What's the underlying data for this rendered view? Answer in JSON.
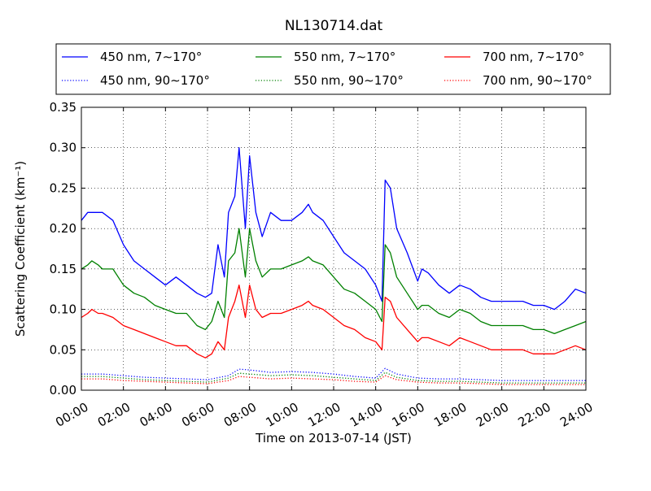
{
  "chart_data": {
    "type": "line",
    "title": "NL130714.dat",
    "xlabel": "Time on 2013-07-14 (JST)",
    "ylabel": "Scattering Coefficient (km⁻¹)",
    "x_range_hours": [
      0,
      24
    ],
    "ylim": [
      0,
      0.35
    ],
    "xticks": [
      "00:00",
      "02:00",
      "04:00",
      "06:00",
      "08:00",
      "10:00",
      "12:00",
      "14:00",
      "16:00",
      "18:00",
      "20:00",
      "22:00",
      "24:00"
    ],
    "yticks": [
      "0.00",
      "0.05",
      "0.10",
      "0.15",
      "0.20",
      "0.25",
      "0.30",
      "0.35"
    ],
    "grid": true,
    "legend_placement": "top, above plot, 3 columns",
    "series": [
      {
        "name": "450 nm, 7∼170°",
        "color": "#0000ff",
        "style": "solid",
        "points": [
          [
            0.0,
            0.21
          ],
          [
            0.3,
            0.22
          ],
          [
            0.5,
            0.22
          ],
          [
            0.8,
            0.22
          ],
          [
            1.0,
            0.22
          ],
          [
            1.5,
            0.21
          ],
          [
            2.0,
            0.18
          ],
          [
            2.5,
            0.16
          ],
          [
            3.0,
            0.15
          ],
          [
            3.5,
            0.14
          ],
          [
            4.0,
            0.13
          ],
          [
            4.5,
            0.14
          ],
          [
            5.0,
            0.13
          ],
          [
            5.5,
            0.12
          ],
          [
            5.9,
            0.115
          ],
          [
            6.2,
            0.12
          ],
          [
            6.5,
            0.18
          ],
          [
            6.8,
            0.14
          ],
          [
            7.0,
            0.22
          ],
          [
            7.3,
            0.24
          ],
          [
            7.5,
            0.3
          ],
          [
            7.8,
            0.2
          ],
          [
            8.0,
            0.29
          ],
          [
            8.3,
            0.22
          ],
          [
            8.6,
            0.19
          ],
          [
            9.0,
            0.22
          ],
          [
            9.5,
            0.21
          ],
          [
            10.0,
            0.21
          ],
          [
            10.5,
            0.22
          ],
          [
            10.8,
            0.23
          ],
          [
            11.0,
            0.22
          ],
          [
            11.5,
            0.21
          ],
          [
            12.0,
            0.19
          ],
          [
            12.5,
            0.17
          ],
          [
            13.0,
            0.16
          ],
          [
            13.5,
            0.15
          ],
          [
            14.0,
            0.13
          ],
          [
            14.3,
            0.11
          ],
          [
            14.45,
            0.26
          ],
          [
            14.7,
            0.25
          ],
          [
            15.0,
            0.2
          ],
          [
            15.5,
            0.17
          ],
          [
            16.0,
            0.135
          ],
          [
            16.2,
            0.15
          ],
          [
            16.5,
            0.145
          ],
          [
            17.0,
            0.13
          ],
          [
            17.5,
            0.12
          ],
          [
            18.0,
            0.13
          ],
          [
            18.5,
            0.125
          ],
          [
            19.0,
            0.115
          ],
          [
            19.5,
            0.11
          ],
          [
            20.0,
            0.11
          ],
          [
            20.5,
            0.11
          ],
          [
            21.0,
            0.11
          ],
          [
            21.5,
            0.105
          ],
          [
            22.0,
            0.105
          ],
          [
            22.5,
            0.1
          ],
          [
            23.0,
            0.11
          ],
          [
            23.5,
            0.125
          ],
          [
            24.0,
            0.12
          ]
        ]
      },
      {
        "name": "550 nm, 7∼170°",
        "color": "#008000",
        "style": "solid",
        "points": [
          [
            0.0,
            0.15
          ],
          [
            0.3,
            0.155
          ],
          [
            0.5,
            0.16
          ],
          [
            0.8,
            0.155
          ],
          [
            1.0,
            0.15
          ],
          [
            1.5,
            0.15
          ],
          [
            2.0,
            0.13
          ],
          [
            2.5,
            0.12
          ],
          [
            3.0,
            0.115
          ],
          [
            3.5,
            0.105
          ],
          [
            4.0,
            0.1
          ],
          [
            4.5,
            0.095
          ],
          [
            5.0,
            0.095
          ],
          [
            5.5,
            0.08
          ],
          [
            5.9,
            0.075
          ],
          [
            6.2,
            0.085
          ],
          [
            6.5,
            0.11
          ],
          [
            6.8,
            0.09
          ],
          [
            7.0,
            0.16
          ],
          [
            7.3,
            0.17
          ],
          [
            7.5,
            0.2
          ],
          [
            7.8,
            0.14
          ],
          [
            8.0,
            0.2
          ],
          [
            8.3,
            0.16
          ],
          [
            8.6,
            0.14
          ],
          [
            9.0,
            0.15
          ],
          [
            9.5,
            0.15
          ],
          [
            10.0,
            0.155
          ],
          [
            10.5,
            0.16
          ],
          [
            10.8,
            0.165
          ],
          [
            11.0,
            0.16
          ],
          [
            11.5,
            0.155
          ],
          [
            12.0,
            0.14
          ],
          [
            12.5,
            0.125
          ],
          [
            13.0,
            0.12
          ],
          [
            13.5,
            0.11
          ],
          [
            14.0,
            0.1
          ],
          [
            14.3,
            0.085
          ],
          [
            14.45,
            0.18
          ],
          [
            14.7,
            0.17
          ],
          [
            15.0,
            0.14
          ],
          [
            15.5,
            0.12
          ],
          [
            16.0,
            0.1
          ],
          [
            16.2,
            0.105
          ],
          [
            16.5,
            0.105
          ],
          [
            17.0,
            0.095
          ],
          [
            17.5,
            0.09
          ],
          [
            18.0,
            0.1
          ],
          [
            18.5,
            0.095
          ],
          [
            19.0,
            0.085
          ],
          [
            19.5,
            0.08
          ],
          [
            20.0,
            0.08
          ],
          [
            20.5,
            0.08
          ],
          [
            21.0,
            0.08
          ],
          [
            21.5,
            0.075
          ],
          [
            22.0,
            0.075
          ],
          [
            22.5,
            0.07
          ],
          [
            23.0,
            0.075
          ],
          [
            23.5,
            0.08
          ],
          [
            24.0,
            0.085
          ]
        ]
      },
      {
        "name": "700 nm, 7∼170°",
        "color": "#ff0000",
        "style": "solid",
        "points": [
          [
            0.0,
            0.09
          ],
          [
            0.3,
            0.095
          ],
          [
            0.5,
            0.1
          ],
          [
            0.8,
            0.095
          ],
          [
            1.0,
            0.095
          ],
          [
            1.5,
            0.09
          ],
          [
            2.0,
            0.08
          ],
          [
            2.5,
            0.075
          ],
          [
            3.0,
            0.07
          ],
          [
            3.5,
            0.065
          ],
          [
            4.0,
            0.06
          ],
          [
            4.5,
            0.055
          ],
          [
            5.0,
            0.055
          ],
          [
            5.5,
            0.045
          ],
          [
            5.9,
            0.04
          ],
          [
            6.2,
            0.045
          ],
          [
            6.5,
            0.06
          ],
          [
            6.8,
            0.05
          ],
          [
            7.0,
            0.09
          ],
          [
            7.3,
            0.11
          ],
          [
            7.5,
            0.13
          ],
          [
            7.8,
            0.09
          ],
          [
            8.0,
            0.13
          ],
          [
            8.3,
            0.1
          ],
          [
            8.6,
            0.09
          ],
          [
            9.0,
            0.095
          ],
          [
            9.5,
            0.095
          ],
          [
            10.0,
            0.1
          ],
          [
            10.5,
            0.105
          ],
          [
            10.8,
            0.11
          ],
          [
            11.0,
            0.105
          ],
          [
            11.5,
            0.1
          ],
          [
            12.0,
            0.09
          ],
          [
            12.5,
            0.08
          ],
          [
            13.0,
            0.075
          ],
          [
            13.5,
            0.065
          ],
          [
            14.0,
            0.06
          ],
          [
            14.3,
            0.05
          ],
          [
            14.45,
            0.115
          ],
          [
            14.7,
            0.11
          ],
          [
            15.0,
            0.09
          ],
          [
            15.5,
            0.075
          ],
          [
            16.0,
            0.06
          ],
          [
            16.2,
            0.065
          ],
          [
            16.5,
            0.065
          ],
          [
            17.0,
            0.06
          ],
          [
            17.5,
            0.055
          ],
          [
            18.0,
            0.065
          ],
          [
            18.5,
            0.06
          ],
          [
            19.0,
            0.055
          ],
          [
            19.5,
            0.05
          ],
          [
            20.0,
            0.05
          ],
          [
            20.5,
            0.05
          ],
          [
            21.0,
            0.05
          ],
          [
            21.5,
            0.045
          ],
          [
            22.0,
            0.045
          ],
          [
            22.5,
            0.045
          ],
          [
            23.0,
            0.05
          ],
          [
            23.5,
            0.055
          ],
          [
            24.0,
            0.05
          ]
        ]
      },
      {
        "name": "450 nm, 90∼170°",
        "color": "#0000ff",
        "style": "dotted",
        "points": [
          [
            0.0,
            0.02
          ],
          [
            1.0,
            0.02
          ],
          [
            2.0,
            0.018
          ],
          [
            3.0,
            0.016
          ],
          [
            4.0,
            0.015
          ],
          [
            5.0,
            0.014
          ],
          [
            6.0,
            0.013
          ],
          [
            7.0,
            0.018
          ],
          [
            7.5,
            0.026
          ],
          [
            8.0,
            0.025
          ],
          [
            9.0,
            0.022
          ],
          [
            10.0,
            0.023
          ],
          [
            11.0,
            0.022
          ],
          [
            12.0,
            0.02
          ],
          [
            13.0,
            0.017
          ],
          [
            14.0,
            0.015
          ],
          [
            14.45,
            0.027
          ],
          [
            15.0,
            0.02
          ],
          [
            16.0,
            0.015
          ],
          [
            17.0,
            0.014
          ],
          [
            18.0,
            0.014
          ],
          [
            19.0,
            0.013
          ],
          [
            20.0,
            0.012
          ],
          [
            21.0,
            0.012
          ],
          [
            22.0,
            0.012
          ],
          [
            23.0,
            0.012
          ],
          [
            24.0,
            0.012
          ]
        ]
      },
      {
        "name": "550 nm, 90∼170°",
        "color": "#008000",
        "style": "dotted",
        "points": [
          [
            0.0,
            0.017
          ],
          [
            1.0,
            0.017
          ],
          [
            2.0,
            0.015
          ],
          [
            3.0,
            0.013
          ],
          [
            4.0,
            0.012
          ],
          [
            5.0,
            0.011
          ],
          [
            6.0,
            0.01
          ],
          [
            7.0,
            0.015
          ],
          [
            7.5,
            0.021
          ],
          [
            8.0,
            0.02
          ],
          [
            9.0,
            0.018
          ],
          [
            10.0,
            0.019
          ],
          [
            11.0,
            0.018
          ],
          [
            12.0,
            0.016
          ],
          [
            13.0,
            0.014
          ],
          [
            14.0,
            0.012
          ],
          [
            14.45,
            0.022
          ],
          [
            15.0,
            0.016
          ],
          [
            16.0,
            0.012
          ],
          [
            17.0,
            0.011
          ],
          [
            18.0,
            0.011
          ],
          [
            19.0,
            0.01
          ],
          [
            20.0,
            0.009
          ],
          [
            21.0,
            0.009
          ],
          [
            22.0,
            0.009
          ],
          [
            23.0,
            0.009
          ],
          [
            24.0,
            0.009
          ]
        ]
      },
      {
        "name": "700 nm, 90∼170°",
        "color": "#ff0000",
        "style": "dotted",
        "points": [
          [
            0.0,
            0.014
          ],
          [
            1.0,
            0.014
          ],
          [
            2.0,
            0.012
          ],
          [
            3.0,
            0.011
          ],
          [
            4.0,
            0.01
          ],
          [
            5.0,
            0.009
          ],
          [
            6.0,
            0.008
          ],
          [
            7.0,
            0.012
          ],
          [
            7.5,
            0.017
          ],
          [
            8.0,
            0.016
          ],
          [
            9.0,
            0.014
          ],
          [
            10.0,
            0.015
          ],
          [
            11.0,
            0.014
          ],
          [
            12.0,
            0.013
          ],
          [
            13.0,
            0.011
          ],
          [
            14.0,
            0.01
          ],
          [
            14.45,
            0.018
          ],
          [
            15.0,
            0.013
          ],
          [
            16.0,
            0.01
          ],
          [
            17.0,
            0.009
          ],
          [
            18.0,
            0.009
          ],
          [
            19.0,
            0.008
          ],
          [
            20.0,
            0.007
          ],
          [
            21.0,
            0.007
          ],
          [
            22.0,
            0.007
          ],
          [
            23.0,
            0.007
          ],
          [
            24.0,
            0.007
          ]
        ]
      }
    ]
  }
}
